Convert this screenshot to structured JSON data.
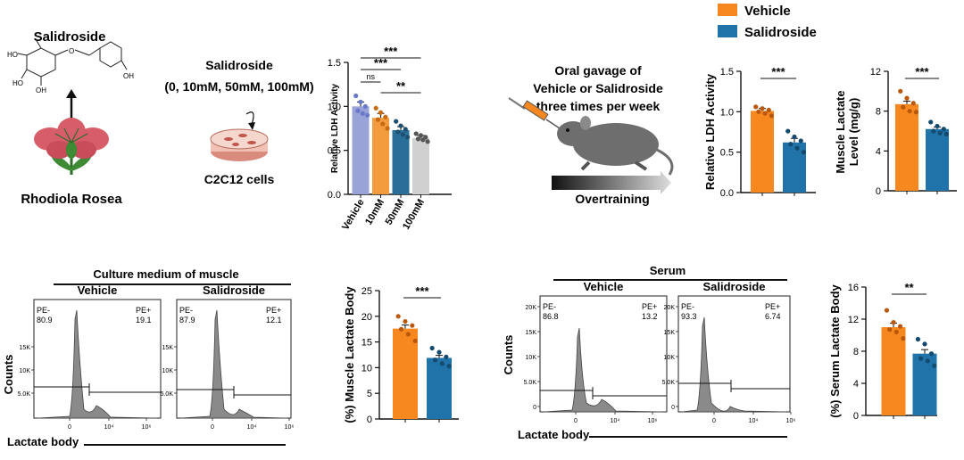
{
  "colors": {
    "vehicle": "#f7871f",
    "salidroside": "#1f73a8",
    "c_vehicle": "#9aa3d8",
    "c_10": "#f39c3d",
    "c_50": "#2a6f9a",
    "c_100": "#d0d0d0",
    "histogram_fill": "#8a8a8a",
    "flower": "#d75d6a",
    "mouse": "#6e6e6e"
  },
  "legend": {
    "vehicle": "Vehicle",
    "salidroside": "Salidroside"
  },
  "scheme": {
    "compound_title": "Salidroside",
    "plant_label": "Rhodiola Rosea",
    "dose_title": "Salidroside",
    "doses": "(0, 10mM, 50mM, 100mM)",
    "cells_label": "C2C12 cells",
    "gavage_text": [
      "Oral gavage of",
      "Vehicle or Salidroside",
      "three times per week"
    ],
    "overtraining_label": "Overtraining",
    "molecule_labels": {
      "oh": "OH",
      "ho": "HO",
      "o": "O"
    }
  },
  "flow": {
    "muscle_title": "Culture medium of muscle",
    "serum_title": "Serum",
    "x_label": "Lactate body",
    "y_label": "Counts",
    "x_ticks": [
      "0",
      "10⁴",
      "10⁶"
    ],
    "panels": [
      {
        "label": "Vehicle",
        "pe_minus": "PE-\n80.9",
        "pe_plus": "PE+\n19.1",
        "y_ticks": [
          "5.0K",
          "10K",
          "15K"
        ]
      },
      {
        "label": "Salidroside",
        "pe_minus": "PE-\n87.9",
        "pe_plus": "PE+\n12.1",
        "y_ticks": [
          "5.0K",
          "10K",
          "15K"
        ]
      },
      {
        "label": "Vehicle",
        "pe_minus": "PE-\n86.8",
        "pe_plus": "PE+\n13.2",
        "y_ticks": [
          "0",
          "5.0K",
          "10K",
          "15K",
          "20K"
        ]
      },
      {
        "label": "Salidroside",
        "pe_minus": "PE-\n93.3",
        "pe_plus": "PE+\n6.74",
        "y_ticks": [
          "0",
          "5.0K",
          "10K",
          "15K",
          "20K"
        ]
      }
    ]
  },
  "chart_data": [
    {
      "type": "bar",
      "ylabel": "Relative LDH Activity",
      "categories": [
        "Vehicle",
        "10mM",
        "50mM",
        "100mM"
      ],
      "values": [
        1.0,
        0.87,
        0.73,
        0.64
      ],
      "errors": [
        0.05,
        0.05,
        0.04,
        0.03
      ],
      "points": [
        [
          1.12,
          1.05,
          1.0,
          0.95,
          0.92,
          0.9
        ],
        [
          0.98,
          0.93,
          0.88,
          0.85,
          0.8,
          0.75
        ],
        [
          0.83,
          0.78,
          0.74,
          0.71,
          0.68,
          0.65
        ],
        [
          0.69,
          0.67,
          0.65,
          0.63,
          0.62,
          0.6
        ]
      ],
      "ylim": [
        0,
        1.5
      ],
      "yticks": [
        "0.0",
        "0.5",
        "1.0",
        "1.5"
      ],
      "significance": [
        {
          "from": "Vehicle",
          "to": "100mM",
          "label": "***"
        },
        {
          "from": "Vehicle",
          "to": "50mM",
          "label": "***"
        },
        {
          "from": "Vehicle",
          "to": "10mM",
          "label": "ns"
        },
        {
          "from": "10mM",
          "to": "100mM",
          "label": "**"
        }
      ]
    },
    {
      "type": "bar",
      "ylabel": "Relative LDH Activity",
      "categories": [
        "Vehicle",
        "Salidroside"
      ],
      "values": [
        1.01,
        0.62
      ],
      "errors": [
        0.03,
        0.05
      ],
      "points": [
        [
          1.06,
          1.04,
          1.02,
          1.0,
          0.98,
          0.95
        ],
        [
          0.76,
          0.69,
          0.64,
          0.6,
          0.55,
          0.5
        ]
      ],
      "ylim": [
        0,
        1.5
      ],
      "yticks": [
        "0.0",
        "0.5",
        "1.0",
        "1.5"
      ],
      "significance": [
        {
          "from": "Vehicle",
          "to": "Salidroside",
          "label": "***"
        }
      ]
    },
    {
      "type": "bar",
      "ylabel": "Muscle Lactate\nLevel (mg/g)",
      "categories": [
        "Vehicle",
        "Salidroside"
      ],
      "values": [
        8.7,
        6.2
      ],
      "errors": [
        0.3,
        0.2
      ],
      "points": [
        [
          10.0,
          9.3,
          8.8,
          8.4,
          8.0,
          7.9
        ],
        [
          6.9,
          6.5,
          6.2,
          6.0,
          5.8,
          5.7
        ]
      ],
      "ylim": [
        0,
        12
      ],
      "yticks": [
        "0",
        "4",
        "8",
        "12"
      ],
      "significance": [
        {
          "from": "Vehicle",
          "to": "Salidroside",
          "label": "***"
        }
      ]
    },
    {
      "type": "bar",
      "ylabel": "(%) Muscle Lactate Body",
      "categories": [
        "Vehicle",
        "Salidroside"
      ],
      "values": [
        17.6,
        11.9
      ],
      "errors": [
        0.7,
        0.5
      ],
      "points": [
        [
          20.0,
          19.0,
          18.2,
          17.5,
          16.5,
          15.2
        ],
        [
          13.8,
          13.0,
          12.1,
          11.5,
          10.8,
          10.3
        ]
      ],
      "ylim": [
        0,
        25
      ],
      "yticks": [
        "0",
        "5",
        "10",
        "15",
        "20",
        "25"
      ],
      "significance": [
        {
          "from": "Vehicle",
          "to": "Salidroside",
          "label": "***"
        }
      ]
    },
    {
      "type": "bar",
      "ylabel": "(%) Serum Lactate Body",
      "categories": [
        "Vehicle",
        "Salidroside"
      ],
      "values": [
        11.0,
        7.7
      ],
      "errors": [
        0.5,
        0.5
      ],
      "points": [
        [
          13.1,
          11.6,
          11.1,
          10.7,
          10.4,
          9.6
        ],
        [
          9.5,
          8.9,
          7.7,
          7.1,
          6.8,
          6.2
        ]
      ],
      "ylim": [
        0,
        16
      ],
      "yticks": [
        "0",
        "4",
        "8",
        "12",
        "16"
      ],
      "significance": [
        {
          "from": "Vehicle",
          "to": "Salidroside",
          "label": "**"
        }
      ]
    }
  ]
}
